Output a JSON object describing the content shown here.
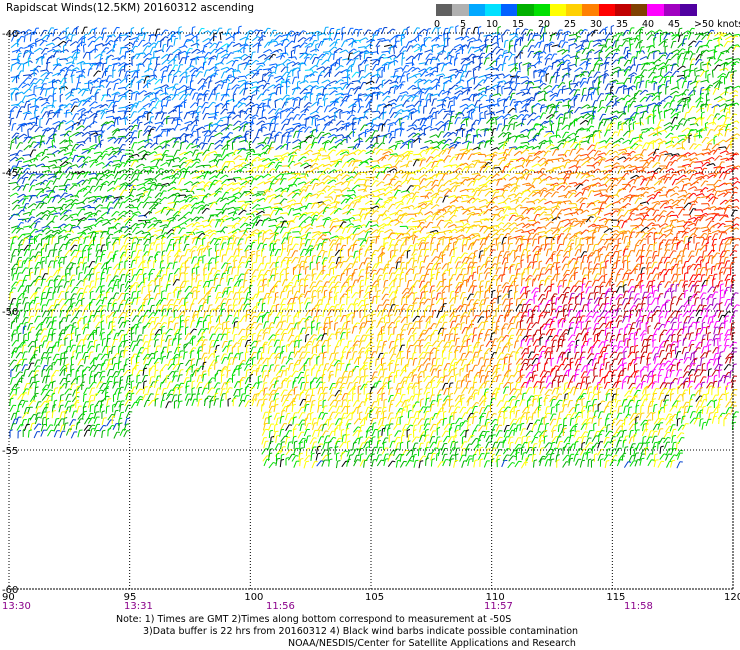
{
  "title": "Rapidscat Winds(12.5KM) 20160312 ascending",
  "legend": {
    "colors": [
      "#606060",
      "#b0b0b0",
      "#00a8ff",
      "#00e0ff",
      "#0060ff",
      "#00b000",
      "#00e000",
      "#ffff00",
      "#ffd000",
      "#ff8000",
      "#ff0000",
      "#c00000",
      "#804000",
      "#ff00ff",
      "#a000c0",
      "#5000a0"
    ],
    "labels": [
      "0",
      "5",
      "10",
      "15",
      "20",
      "25",
      "30",
      "35",
      "40",
      "45",
      ">50 knots"
    ]
  },
  "axes": {
    "lon_ticks": [
      "90",
      "95",
      "100",
      "105",
      "110",
      "115",
      "120"
    ],
    "lat_ticks": [
      "-40",
      "-45",
      "-50",
      "-55",
      "-60"
    ],
    "times": [
      "13:30",
      "13:31",
      "11:56",
      "11:57",
      "11:58"
    ]
  },
  "footer": {
    "line1": "Note: 1) Times are GMT 2)Times along bottom correspond to measurement at -50S",
    "line2": "3)Data buffer is 22 hrs from 20160312 4) Black wind barbs indicate possible contamination",
    "line3": "NOAA/NESDIS/Center for Satellite Applications and Research"
  }
}
